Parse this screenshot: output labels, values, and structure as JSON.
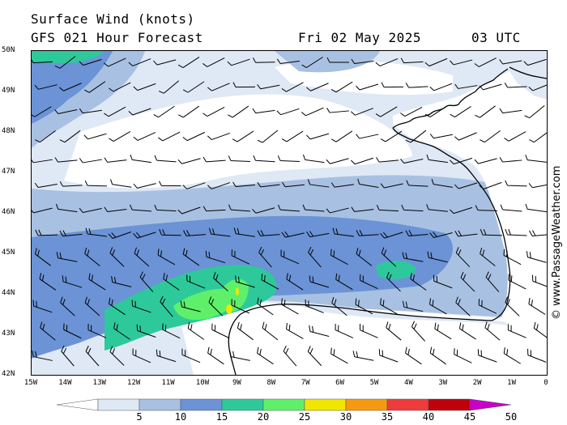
{
  "header": {
    "title": "Surface Wind (knots)",
    "model": "GFS 021 Hour Forecast",
    "date": "Fri 02 May 2025",
    "time": "03 UTC"
  },
  "credit": "© www.PassageWeather.com",
  "map": {
    "lat_labels": [
      "50N",
      "49N",
      "48N",
      "47N",
      "46N",
      "45N",
      "44N",
      "43N",
      "42N"
    ],
    "lon_labels": [
      "15W",
      "14W",
      "13W",
      "12W",
      "11W",
      "10W",
      "9W",
      "8W",
      "7W",
      "6W",
      "5W",
      "4W",
      "3W",
      "2W",
      "1W",
      "0"
    ],
    "lon_range": [
      -15,
      0
    ],
    "lat_range": [
      42,
      50
    ],
    "grid": false
  },
  "legend": {
    "bins": [
      {
        "label": "",
        "color": "#ffffff"
      },
      {
        "label": "5",
        "color": "#dfe8f5"
      },
      {
        "label": "10",
        "color": "#a8c1e2"
      },
      {
        "label": "15",
        "color": "#6b93d6"
      },
      {
        "label": "20",
        "color": "#2ec99a"
      },
      {
        "label": "25",
        "color": "#5ef06a"
      },
      {
        "label": "30",
        "color": "#f0e600"
      },
      {
        "label": "35",
        "color": "#f59a10"
      },
      {
        "label": "40",
        "color": "#ee3b3b"
      },
      {
        "label": "45",
        "color": "#c0000a"
      },
      {
        "label": "50",
        "color": "#c800c8"
      }
    ]
  },
  "colors": {
    "land": "#ffffff",
    "coast": "#000000",
    "barb": "#000000"
  }
}
